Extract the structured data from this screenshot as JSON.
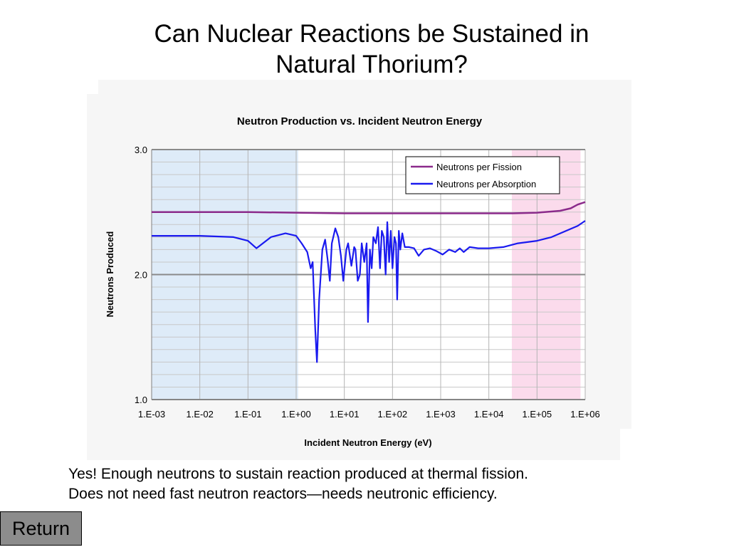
{
  "slide": {
    "title_line1": "Can Nuclear Reactions be Sustained in",
    "title_line2": "Natural Thorium?",
    "caption_line1": "Yes!  Enough neutrons to sustain reaction produced at thermal fission.",
    "caption_line2": "Does not need fast neutron reactors—needs neutronic efficiency.",
    "return_label": "Return"
  },
  "chart_data": {
    "type": "line",
    "title": "Neutron Production vs. Incident Neutron Energy",
    "xlabel": "Incident Neutron Energy (eV)",
    "ylabel": "Neutrons Produced",
    "x_scale": "log",
    "xlim": [
      0.001,
      1000000
    ],
    "ylim": [
      1.0,
      3.0
    ],
    "x_ticks": [
      "1.E-03",
      "1.E-02",
      "1.E-01",
      "1.E+00",
      "1.E+01",
      "1.E+02",
      "1.E+03",
      "1.E+04",
      "1.E+05",
      "1.E+06"
    ],
    "y_ticks": [
      "1.0",
      "2.0",
      "3.0"
    ],
    "grid": true,
    "legend_position": "top-right",
    "shaded_regions": [
      {
        "x_from": 0.001,
        "x_to": 1.1,
        "color": "#deebf8"
      },
      {
        "x_from": 30000,
        "x_to": 800000,
        "color": "#fbdbec"
      }
    ],
    "series": [
      {
        "name": "Neutrons per Fission",
        "color": "#8b2a8b",
        "points": [
          [
            0.001,
            2.5
          ],
          [
            0.01,
            2.5
          ],
          [
            0.1,
            2.5
          ],
          [
            1,
            2.495
          ],
          [
            10,
            2.49
          ],
          [
            100,
            2.49
          ],
          [
            1000,
            2.49
          ],
          [
            10000,
            2.49
          ],
          [
            30000,
            2.49
          ],
          [
            100000,
            2.495
          ],
          [
            300000,
            2.51
          ],
          [
            500000,
            2.53
          ],
          [
            700000,
            2.56
          ],
          [
            1000000,
            2.58
          ]
        ]
      },
      {
        "name": "Neutrons per Absorption",
        "color": "#1a1aef",
        "points": [
          [
            0.001,
            2.31
          ],
          [
            0.01,
            2.31
          ],
          [
            0.05,
            2.3
          ],
          [
            0.1,
            2.27
          ],
          [
            0.15,
            2.21
          ],
          [
            0.3,
            2.3
          ],
          [
            0.6,
            2.33
          ],
          [
            1.0,
            2.31
          ],
          [
            1.3,
            2.25
          ],
          [
            1.7,
            2.18
          ],
          [
            2.0,
            2.05
          ],
          [
            2.2,
            2.1
          ],
          [
            2.5,
            1.55
          ],
          [
            2.7,
            1.3
          ],
          [
            3.0,
            1.8
          ],
          [
            3.5,
            2.2
          ],
          [
            4.0,
            2.28
          ],
          [
            4.5,
            2.12
          ],
          [
            5.0,
            1.95
          ],
          [
            5.5,
            2.25
          ],
          [
            6.5,
            2.37
          ],
          [
            7.5,
            2.3
          ],
          [
            8.5,
            2.15
          ],
          [
            9.5,
            1.95
          ],
          [
            11,
            2.2
          ],
          [
            12,
            2.25
          ],
          [
            14,
            2.07
          ],
          [
            16,
            2.22
          ],
          [
            17,
            2.2
          ],
          [
            19,
            1.95
          ],
          [
            21,
            2.0
          ],
          [
            23,
            2.25
          ],
          [
            26,
            2.1
          ],
          [
            29,
            2.25
          ],
          [
            31,
            1.62
          ],
          [
            34,
            2.2
          ],
          [
            37,
            2.05
          ],
          [
            40,
            2.3
          ],
          [
            45,
            2.25
          ],
          [
            50,
            2.38
          ],
          [
            55,
            2.05
          ],
          [
            60,
            2.35
          ],
          [
            66,
            2.3
          ],
          [
            72,
            2.0
          ],
          [
            78,
            2.42
          ],
          [
            85,
            2.1
          ],
          [
            92,
            2.35
          ],
          [
            100,
            2.05
          ],
          [
            110,
            2.3
          ],
          [
            118,
            2.25
          ],
          [
            125,
            1.8
          ],
          [
            135,
            2.35
          ],
          [
            145,
            2.2
          ],
          [
            160,
            2.33
          ],
          [
            180,
            2.22
          ],
          [
            220,
            2.22
          ],
          [
            280,
            2.21
          ],
          [
            350,
            2.15
          ],
          [
            450,
            2.2
          ],
          [
            600,
            2.21
          ],
          [
            800,
            2.19
          ],
          [
            1100,
            2.16
          ],
          [
            1500,
            2.2
          ],
          [
            2000,
            2.18
          ],
          [
            2500,
            2.21
          ],
          [
            3000,
            2.18
          ],
          [
            4000,
            2.22
          ],
          [
            6000,
            2.21
          ],
          [
            10000,
            2.21
          ],
          [
            20000,
            2.22
          ],
          [
            40000,
            2.25
          ],
          [
            100000,
            2.27
          ],
          [
            200000,
            2.3
          ],
          [
            400000,
            2.35
          ],
          [
            700000,
            2.39
          ],
          [
            1000000,
            2.43
          ]
        ]
      }
    ]
  }
}
